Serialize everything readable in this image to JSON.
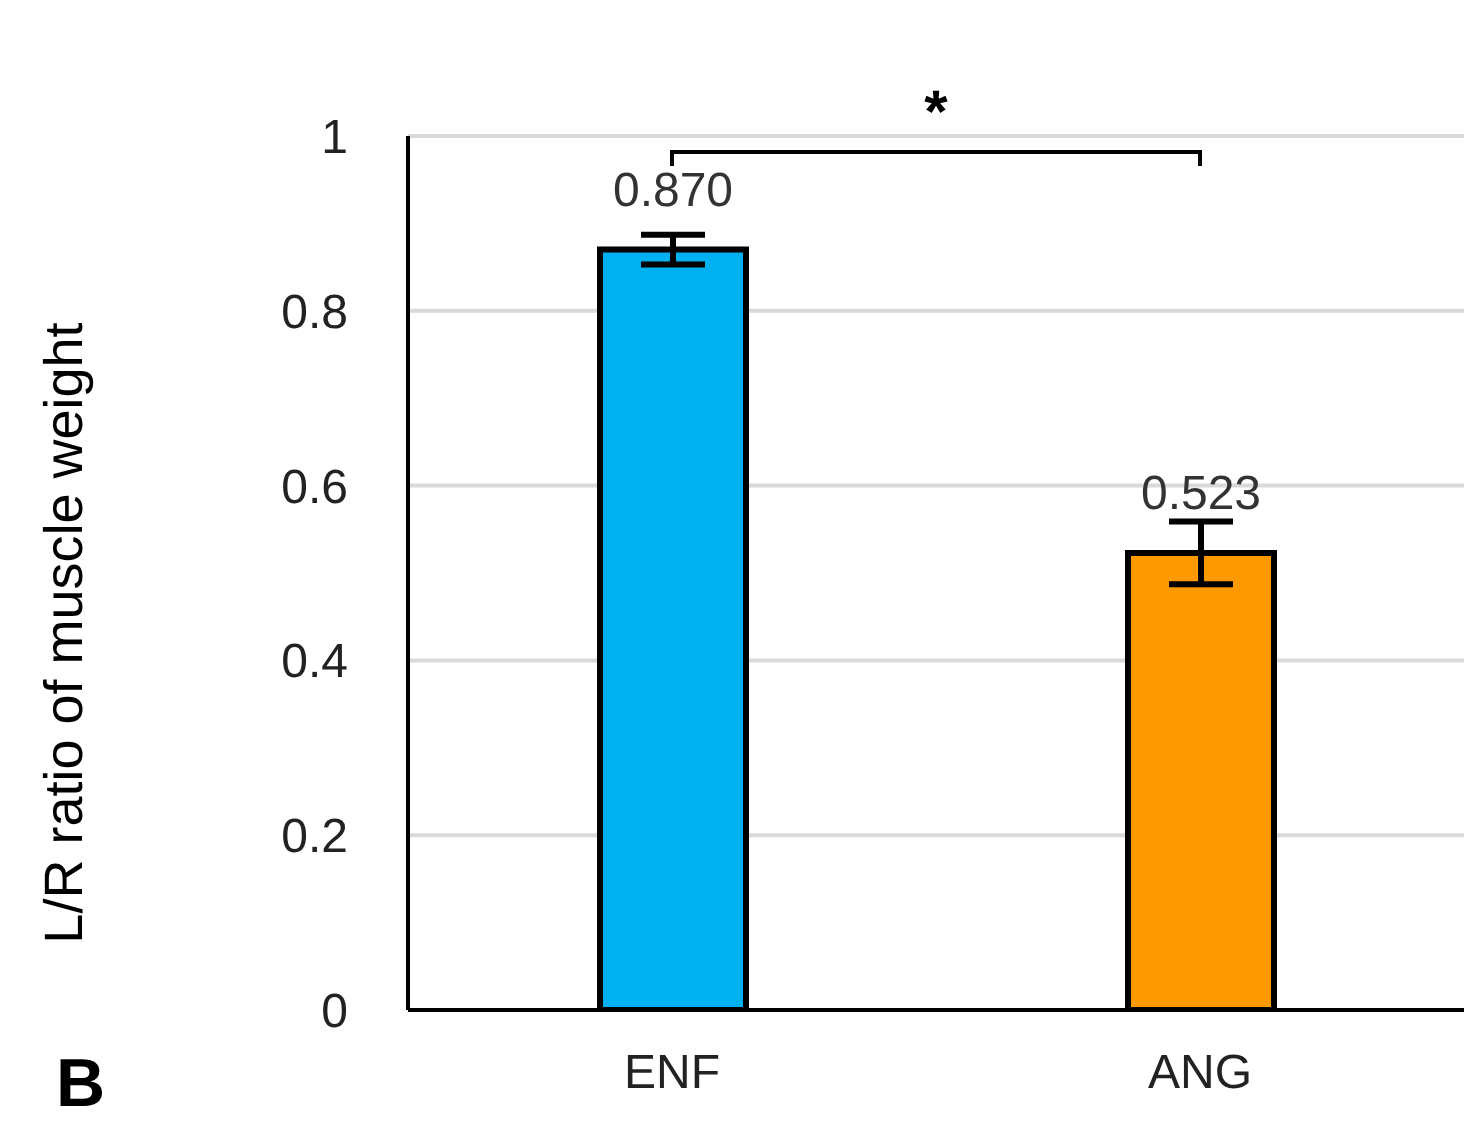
{
  "chart_data": {
    "type": "bar",
    "ylabel": "L/R ratio of muscle weight",
    "categories": [
      "ENF",
      "ANG"
    ],
    "values": [
      0.87,
      0.523
    ],
    "colors": [
      "#00b0f0",
      "#ff9900"
    ],
    "errors": [
      0.017,
      0.036
    ],
    "value_labels": [
      "0.870",
      "0.523"
    ],
    "ylim": [
      0,
      1
    ],
    "yticks": [
      0,
      0.2,
      0.4,
      0.6,
      0.8,
      1
    ],
    "grid": "y",
    "annotations": [
      "*",
      "B"
    ]
  }
}
